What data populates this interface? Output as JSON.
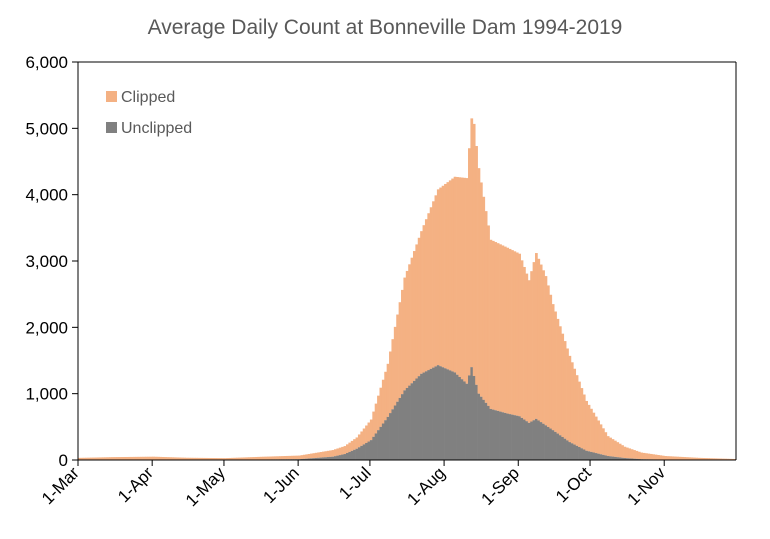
{
  "chart_data": {
    "type": "bar",
    "title": "Average Daily Count at Bonneville Dam 1994-2019",
    "xlabel": "",
    "ylabel": "",
    "ylim": [
      0,
      6000
    ],
    "y_ticks": [
      0,
      1000,
      2000,
      3000,
      4000,
      5000,
      6000
    ],
    "y_tick_labels": [
      "0",
      "1,000",
      "2,000",
      "3,000",
      "4,000",
      "5,000",
      "6,000"
    ],
    "x_tick_labels": [
      "1-Mar",
      "1-Apr",
      "1-May",
      "1-Jun",
      "1-Jul",
      "1-Aug",
      "1-Sep",
      "1-Oct",
      "1-Nov"
    ],
    "x_range": [
      "1-Mar",
      "30-Nov"
    ],
    "stacked": true,
    "grid": false,
    "legend_position": "top-left",
    "series": [
      {
        "name": "Unclipped",
        "color": "#808080",
        "points": [
          [
            "1-Mar",
            2
          ],
          [
            "1-Apr",
            5
          ],
          [
            "1-May",
            3
          ],
          [
            "1-Jun",
            12
          ],
          [
            "15-Jun",
            50
          ],
          [
            "20-Jun",
            90
          ],
          [
            "25-Jun",
            170
          ],
          [
            "1-Jul",
            300
          ],
          [
            "8-Jul",
            650
          ],
          [
            "15-Jul",
            1050
          ],
          [
            "22-Jul",
            1300
          ],
          [
            "29-Jul",
            1430
          ],
          [
            "5-Aug",
            1320
          ],
          [
            "10-Aug",
            1150
          ],
          [
            "12-Aug",
            1400
          ],
          [
            "15-Aug",
            1000
          ],
          [
            "20-Aug",
            770
          ],
          [
            "27-Aug",
            700
          ],
          [
            "1-Sep",
            660
          ],
          [
            "5-Sep",
            560
          ],
          [
            "8-Sep",
            620
          ],
          [
            "15-Sep",
            450
          ],
          [
            "22-Sep",
            270
          ],
          [
            "29-Sep",
            140
          ],
          [
            "8-Oct",
            60
          ],
          [
            "15-Oct",
            30
          ],
          [
            "22-Oct",
            12
          ],
          [
            "1-Nov",
            5
          ],
          [
            "30-Nov",
            0
          ]
        ]
      },
      {
        "name": "Clipped",
        "color": "#F4B183",
        "points": [
          [
            "1-Mar",
            30
          ],
          [
            "15-Mar",
            40
          ],
          [
            "1-Apr",
            45
          ],
          [
            "15-Apr",
            30
          ],
          [
            "1-May",
            25
          ],
          [
            "15-May",
            40
          ],
          [
            "1-Jun",
            55
          ],
          [
            "15-Jun",
            100
          ],
          [
            "20-Jun",
            120
          ],
          [
            "25-Jun",
            170
          ],
          [
            "1-Jul",
            310
          ],
          [
            "8-Jul",
            800
          ],
          [
            "15-Jul",
            1700
          ],
          [
            "22-Jul",
            2150
          ],
          [
            "29-Jul",
            2650
          ],
          [
            "5-Aug",
            2950
          ],
          [
            "10-Aug",
            3100
          ],
          [
            "12-Aug",
            3750
          ],
          [
            "13-Aug",
            3800
          ],
          [
            "15-Aug",
            3400
          ],
          [
            "20-Aug",
            2550
          ],
          [
            "27-Aug",
            2500
          ],
          [
            "1-Sep",
            2450
          ],
          [
            "5-Sep",
            2150
          ],
          [
            "8-Sep",
            2500
          ],
          [
            "12-Sep",
            2250
          ],
          [
            "15-Sep",
            1900
          ],
          [
            "22-Sep",
            1300
          ],
          [
            "29-Sep",
            750
          ],
          [
            "8-Oct",
            300
          ],
          [
            "15-Oct",
            170
          ],
          [
            "22-Oct",
            100
          ],
          [
            "1-Nov",
            55
          ],
          [
            "15-Nov",
            30
          ],
          [
            "30-Nov",
            15
          ]
        ]
      }
    ]
  }
}
